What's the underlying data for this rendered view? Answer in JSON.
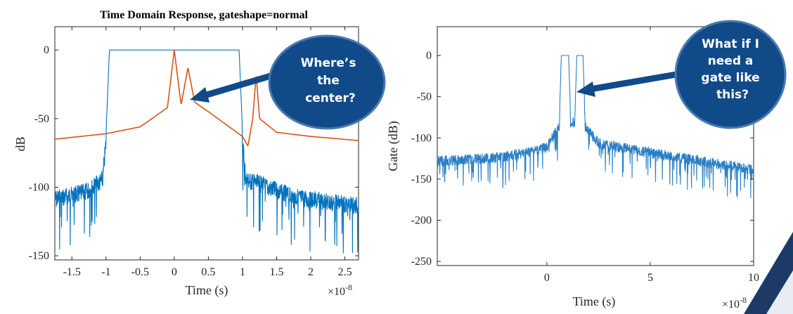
{
  "chart_data": [
    {
      "type": "line",
      "title": "Time Domain Response, gateshape=normal",
      "xlabel": "Time (s)",
      "ylabel": "dB",
      "x_exponent": "×10",
      "x_exponent_power": "-8",
      "xlim": [
        -1.75,
        2.7
      ],
      "ylim": [
        -153,
        17
      ],
      "xticks": [
        "-1.5",
        "-1",
        "-0.5",
        "0",
        "0.5",
        "1",
        "1.5",
        "2",
        "2.5"
      ],
      "xtick_values": [
        -1.5,
        -1,
        -0.5,
        0,
        0.5,
        1,
        1.5,
        2,
        2.5
      ],
      "yticks": [
        "0",
        "-50",
        "-100",
        "-150"
      ],
      "ytick_values": [
        0,
        -50,
        -100,
        -150
      ],
      "grid": false,
      "series": [
        {
          "color": "#0072bd",
          "shape": "gate",
          "x": [
            -1.75,
            -1.3,
            -1.05,
            -1.0,
            -0.95,
            0.95,
            1.0,
            1.05,
            1.3,
            1.7,
            2.2,
            2.7
          ],
          "values": [
            -102,
            -97,
            -88,
            -60,
            0,
            0,
            -60,
            -88,
            -92,
            -100,
            -104,
            -107
          ]
        },
        {
          "color": "#d95319",
          "shape": "response",
          "x": [
            -1.75,
            -1.0,
            -0.5,
            -0.1,
            0.0,
            0.1,
            0.2,
            0.3,
            0.5,
            1.0,
            1.08,
            1.15,
            1.2,
            1.25,
            1.5,
            2.0,
            2.7
          ],
          "values": [
            -65,
            -61,
            -56,
            -42,
            0,
            -40,
            -13,
            -38,
            -45,
            -63,
            -70,
            -50,
            -18,
            -50,
            -60,
            -63,
            -66
          ]
        }
      ]
    },
    {
      "type": "line",
      "title": "",
      "xlabel": "Time (s)",
      "ylabel": "Gate (dB)",
      "x_exponent": "×10",
      "x_exponent_power": "-8",
      "xlim": [
        -5.3,
        10
      ],
      "ylim": [
        -255,
        35
      ],
      "xticks": [
        "0",
        "5",
        "10"
      ],
      "xtick_values": [
        0,
        5,
        10
      ],
      "yticks": [
        "0",
        "-50",
        "-100",
        "-150",
        "-200",
        "-250"
      ],
      "ytick_values": [
        0,
        -50,
        -100,
        -150,
        -200,
        -250
      ],
      "grid": false,
      "series": [
        {
          "color": "#2a7fc4",
          "shape": "double-gate",
          "x": [
            -5.3,
            -2,
            0,
            0.6,
            0.7,
            1.05,
            1.15,
            1.35,
            1.45,
            1.75,
            1.85,
            2.5,
            5,
            10
          ],
          "values": [
            -122,
            -117,
            -105,
            -80,
            0,
            0,
            -75,
            -75,
            0,
            0,
            -80,
            -100,
            -112,
            -132
          ]
        }
      ]
    }
  ],
  "callouts": [
    {
      "lines": [
        "Where’s",
        "the",
        "center?"
      ],
      "color": "#114a89"
    },
    {
      "lines": [
        "What if I",
        "need a",
        "gate like",
        "this?"
      ],
      "color": "#114a89"
    }
  ]
}
